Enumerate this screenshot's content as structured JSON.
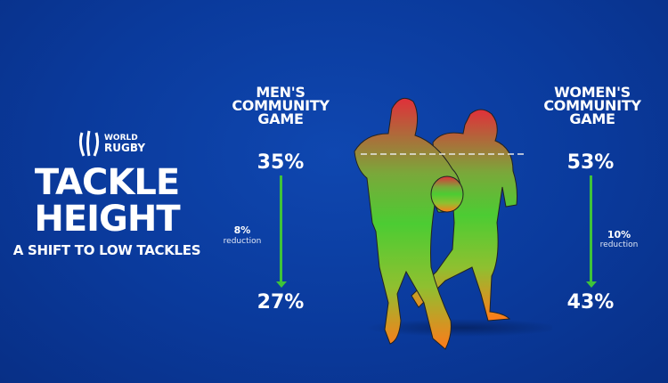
{
  "logo": {
    "line1": "WORLD",
    "line2": "RUGBY"
  },
  "title": {
    "line1": "TACKLE",
    "line2": "HEIGHT",
    "subtitle": "A SHIFT TO LOW TACKLES"
  },
  "men": {
    "heading": [
      "MEN'S",
      "COMMUNITY",
      "GAME"
    ],
    "before": "35%",
    "after": "27%",
    "reduction_value": "8%",
    "reduction_label": "reduction"
  },
  "women": {
    "heading": [
      "WOMEN'S",
      "COMMUNITY",
      "GAME"
    ],
    "before": "53%",
    "after": "43%",
    "reduction_value": "10%",
    "reduction_label": "reduction"
  },
  "colors": {
    "background": "#0a3a9c",
    "arrow": "#3fc33a",
    "high": "#e0303a",
    "mid": "#4ccc33",
    "low": "#ff7a1a"
  }
}
